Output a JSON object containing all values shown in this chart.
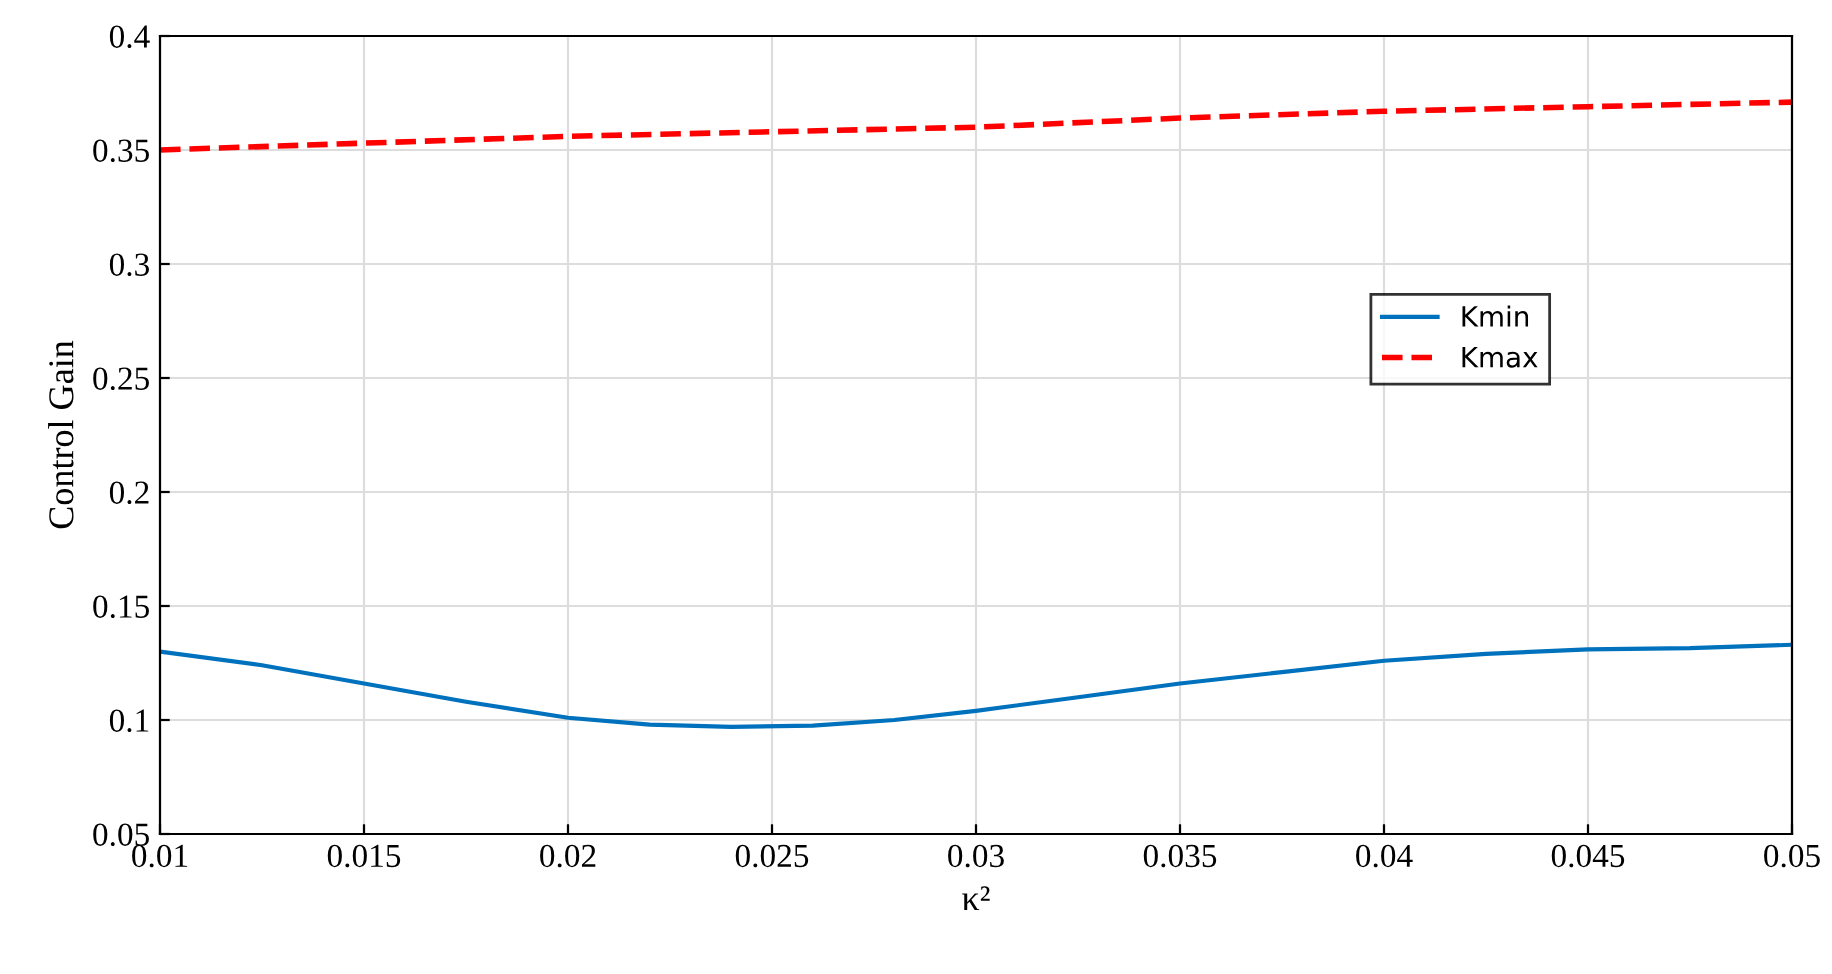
{
  "chart_data": {
    "type": "line",
    "xlabel": "κ²",
    "ylabel": "Control Gain",
    "xlim": [
      0.01,
      0.05
    ],
    "xticks": [
      0.01,
      0.015,
      0.02,
      0.025,
      0.03,
      0.035,
      0.04,
      0.045,
      0.05
    ],
    "ylim": [
      0.05,
      0.4
    ],
    "yticks": [
      0.05,
      0.1,
      0.15,
      0.2,
      0.25,
      0.3,
      0.35,
      0.4
    ],
    "grid": true,
    "legend": "right",
    "series": [
      {
        "name": "Kmin",
        "color": "#0072bd",
        "line_style": "solid",
        "x": [
          0.01,
          0.0125,
          0.015,
          0.0175,
          0.02,
          0.022,
          0.024,
          0.026,
          0.028,
          0.03,
          0.0325,
          0.035,
          0.0375,
          0.04,
          0.0425,
          0.045,
          0.0475,
          0.05
        ],
        "values": [
          0.13,
          0.124,
          0.116,
          0.108,
          0.101,
          0.098,
          0.097,
          0.0975,
          0.1,
          0.104,
          0.11,
          0.116,
          0.121,
          0.126,
          0.129,
          0.131,
          0.1315,
          0.133
        ]
      },
      {
        "name": "Kmax",
        "color": "#ff0000",
        "line_style": "dashed",
        "x": [
          0.01,
          0.015,
          0.02,
          0.025,
          0.03,
          0.035,
          0.04,
          0.045,
          0.05
        ],
        "values": [
          0.35,
          0.353,
          0.356,
          0.358,
          0.36,
          0.364,
          0.367,
          0.369,
          0.371
        ]
      }
    ]
  }
}
